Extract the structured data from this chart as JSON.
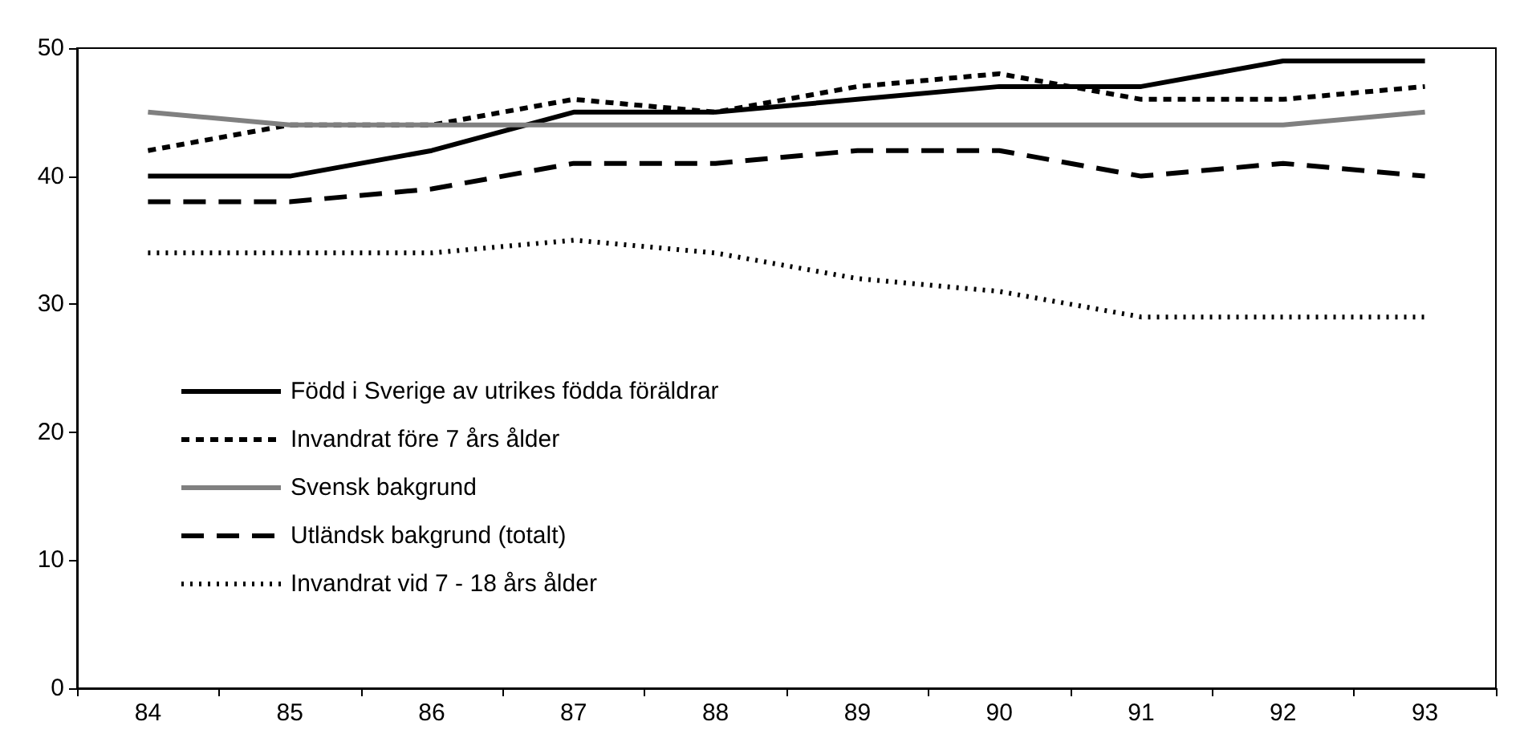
{
  "chart_data": {
    "type": "line",
    "categories": [
      "84",
      "85",
      "86",
      "87",
      "88",
      "89",
      "90",
      "91",
      "92",
      "93"
    ],
    "ylim": [
      0,
      50
    ],
    "yticks": [
      0,
      10,
      20,
      30,
      40,
      50
    ],
    "grid": false,
    "legend": "bottom left",
    "marker": "none",
    "series": [
      {
        "name": "Född i Sverige av utrikes födda föräldrar",
        "color": "#000000",
        "line_style": "solid",
        "values": [
          40,
          40,
          42,
          45,
          45,
          46,
          47,
          47,
          49,
          49
        ]
      },
      {
        "name": "Invandrat före 7 års ålder",
        "color": "#000000",
        "line_style": "dashed",
        "values": [
          42,
          44,
          44,
          46,
          45,
          47,
          48,
          46,
          46,
          47
        ]
      },
      {
        "name": "Svensk bakgrund",
        "color": "#808080",
        "line_style": "solid",
        "values": [
          45,
          44,
          44,
          44,
          44,
          44,
          44,
          44,
          44,
          45
        ]
      },
      {
        "name": "Utländsk bakgrund (totalt)",
        "color": "#000000",
        "line_style": "longdash",
        "values": [
          38,
          38,
          39,
          41,
          41,
          42,
          42,
          40,
          41,
          40
        ]
      },
      {
        "name": "Invandrat vid 7 - 18 års ålder",
        "color": "#000000",
        "line_style": "dotted",
        "values": [
          34,
          34,
          34,
          35,
          34,
          32,
          31,
          29,
          29,
          29
        ]
      }
    ]
  }
}
